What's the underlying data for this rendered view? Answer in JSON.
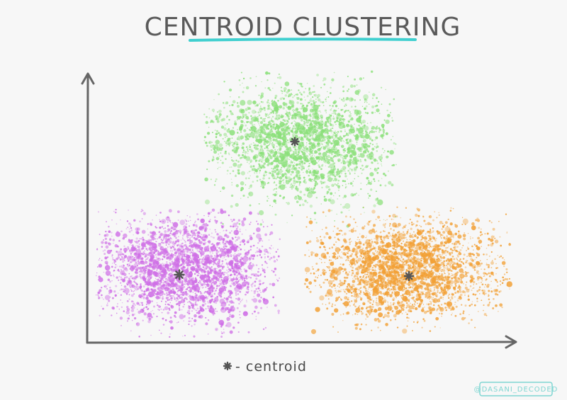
{
  "title": "CENTROID CLUSTERING",
  "legend": {
    "symbol": "*",
    "label": "- centroid"
  },
  "watermark": "@DASANI_DECODED",
  "colors": {
    "background": "#f7f7f7",
    "axis": "#666666",
    "title_underline": "#3fcfcf",
    "centroid": "#555555",
    "watermark": "#7fd6d2"
  },
  "clusters": [
    {
      "name": "green",
      "color": "#8be07a",
      "centroid": "*"
    },
    {
      "name": "purple",
      "color": "#cf6fe6",
      "centroid": "*"
    },
    {
      "name": "orange",
      "color": "#f2a035",
      "centroid": "*"
    }
  ]
}
